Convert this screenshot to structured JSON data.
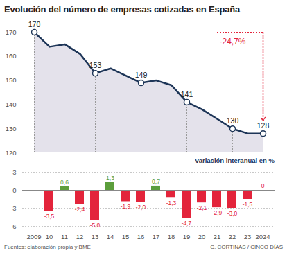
{
  "chart_data": [
    {
      "type": "line",
      "title": "Evolución del número de empresas cotizadas en España",
      "categories": [
        "2009",
        "10",
        "11",
        "12",
        "13",
        "14",
        "15",
        "16",
        "17",
        "18",
        "19",
        "20",
        "21",
        "22",
        "23",
        "2024"
      ],
      "values": [
        170,
        164,
        165,
        161,
        153,
        155,
        152,
        149,
        150,
        148,
        141,
        138,
        134,
        130,
        128,
        128
      ],
      "value_labels": [
        "170",
        null,
        null,
        null,
        "153",
        null,
        null,
        "149",
        null,
        null,
        "141",
        null,
        null,
        "130",
        null,
        "128"
      ],
      "data_labels": true,
      "color": "#1d3557",
      "ylim": [
        120,
        170
      ],
      "yticks": [
        120,
        130,
        140,
        150,
        160,
        170
      ],
      "tick_labels": "y",
      "annotation": "-24,7%"
    },
    {
      "type": "bar",
      "subtitle": "Variación interanual en %",
      "categories": [
        "2009",
        "10",
        "11",
        "12",
        "13",
        "14",
        "15",
        "16",
        "17",
        "18",
        "19",
        "20",
        "21",
        "22",
        "23",
        "2024"
      ],
      "values": [
        null,
        -3.5,
        0.6,
        -2.4,
        -5.0,
        1.3,
        -1.9,
        -2.0,
        0.7,
        -1.3,
        -4.7,
        -2.1,
        -2.9,
        -3.0,
        -1.5,
        0
      ],
      "value_labels": [
        null,
        "-3,5",
        "0,6",
        "-2,4",
        "-5,0",
        "1,3",
        "-1,9",
        "-2,0",
        "0,7",
        "-1,3",
        "-4,7",
        "-2,1",
        "-2,9",
        "-3,0",
        "-1,5",
        "0"
      ],
      "data_labels": true,
      "colors": [
        null,
        "#e3243b",
        "#5c9e3c",
        "#e3243b",
        "#e3243b",
        "#5c9e3c",
        "#e3243b",
        "#e3243b",
        "#5c9e3c",
        "#e3243b",
        "#e3243b",
        "#e3243b",
        "#e3243b",
        "#e3243b",
        "#e3243b",
        "#e3243b"
      ],
      "ylim": [
        -6,
        3
      ],
      "yticks": [
        -6,
        -3,
        0,
        3
      ],
      "grid": true,
      "source": "Fuentes: elaboración propia y BME",
      "credit": "C. CORTINAS / CINCO DÍAS"
    }
  ]
}
